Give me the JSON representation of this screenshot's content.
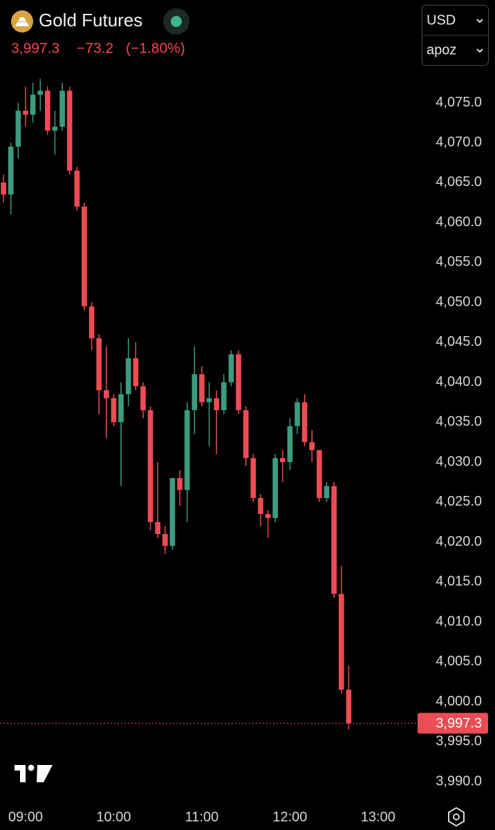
{
  "header": {
    "currency": "USD",
    "unit": "apoz"
  },
  "chart_data": {
    "type": "candlestick",
    "title": "Gold Futures",
    "price": {
      "value": 3997.3,
      "label": "3,997.3"
    },
    "change": {
      "value": -73.2,
      "label": "−73.2"
    },
    "change_percent": {
      "value": -1.8,
      "label": "(−1.80%)"
    },
    "up_color": "#3d9b80",
    "down_color": "#ec4c55",
    "x": [
      525,
      530,
      535,
      540,
      545,
      550,
      555,
      560,
      565,
      570,
      575,
      580,
      585,
      590,
      595,
      600,
      605,
      610,
      615,
      620,
      625,
      630,
      635,
      640,
      645,
      650,
      655,
      660,
      665,
      670,
      675,
      680,
      685,
      690,
      695,
      700,
      705,
      710,
      715,
      720,
      725,
      730,
      735,
      740,
      745,
      750,
      755,
      760
    ],
    "open": [
      4065.0,
      4063.5,
      4069.5,
      4074.0,
      4073.5,
      4076.0,
      4076.5,
      4071.5,
      4072.0,
      4076.5,
      4066.5,
      4062.0,
      4049.5,
      4045.5,
      4039.0,
      4038.0,
      4035.0,
      4038.5,
      4043.0,
      4039.5,
      4036.5,
      4022.5,
      4021.0,
      4019.5,
      4028.0,
      4026.5,
      4036.5,
      4041.0,
      4037.5,
      4038.0,
      4036.5,
      4040.0,
      4043.5,
      4036.5,
      4030.5,
      4025.5,
      4023.5,
      4023.0,
      4030.5,
      4030.0,
      4034.5,
      4037.5,
      4032.5,
      4031.5,
      4025.5,
      4027.0,
      4013.5,
      4001.5
    ],
    "high": [
      4066.0,
      4070.0,
      4075.0,
      4077.0,
      4077.5,
      4078.0,
      4077.0,
      4074.0,
      4077.5,
      4077.0,
      4067.0,
      4062.5,
      4050.0,
      4046.0,
      4044.5,
      4038.5,
      4040.0,
      4045.5,
      4045.0,
      4040.0,
      4037.0,
      4030.0,
      4022.0,
      4028.0,
      4029.0,
      4037.5,
      4044.5,
      4042.0,
      4040.0,
      4039.0,
      4041.0,
      4044.0,
      4044.0,
      4037.0,
      4031.0,
      4026.0,
      4024.0,
      4031.0,
      4031.5,
      4035.5,
      4038.0,
      4038.5,
      4034.0,
      4031.5,
      4027.5,
      4027.5,
      4017.0,
      4004.5
    ],
    "low": [
      4062.5,
      4061.0,
      4068.0,
      4072.0,
      4072.5,
      4074.0,
      4071.0,
      4068.5,
      4071.5,
      4066.0,
      4061.5,
      4049.0,
      4044.0,
      4036.0,
      4033.0,
      4034.5,
      4027.0,
      4037.0,
      4039.0,
      4035.5,
      4021.5,
      4020.5,
      4018.5,
      4019.0,
      4024.5,
      4022.5,
      4033.5,
      4037.0,
      4032.0,
      4031.0,
      4036.0,
      4039.5,
      4036.0,
      4029.5,
      4025.0,
      4022.0,
      4020.5,
      4022.5,
      4027.5,
      4029.0,
      4033.5,
      4032.0,
      4030.0,
      4025.0,
      4025.0,
      4013.0,
      4001.0,
      3996.5
    ],
    "close": [
      4063.5,
      4069.5,
      4074.0,
      4073.5,
      4076.0,
      4076.5,
      4071.5,
      4072.0,
      4076.5,
      4066.5,
      4062.0,
      4049.5,
      4045.5,
      4039.0,
      4038.0,
      4035.0,
      4038.5,
      4043.0,
      4039.5,
      4036.5,
      4022.5,
      4021.0,
      4019.5,
      4028.0,
      4026.5,
      4036.5,
      4041.0,
      4037.5,
      4038.0,
      4036.5,
      4040.0,
      4043.5,
      4036.5,
      4030.5,
      4025.5,
      4023.5,
      4023.0,
      4030.5,
      4030.0,
      4034.5,
      4037.5,
      4032.5,
      4031.5,
      4025.5,
      4027.0,
      4013.5,
      4001.5,
      3997.3
    ],
    "xlim": [
      522.6,
      805
    ],
    "xticks": [
      {
        "value": 540,
        "label": "09:00"
      },
      {
        "value": 600,
        "label": "10:00"
      },
      {
        "value": 660,
        "label": "11:00"
      },
      {
        "value": 720,
        "label": "12:00"
      },
      {
        "value": 780,
        "label": "13:00"
      }
    ],
    "ylim": [
      3987.4,
      4079.2
    ],
    "yticks": [
      {
        "value": 3990,
        "label": "3,990.0"
      },
      {
        "value": 3995,
        "label": "3,995.0"
      },
      {
        "value": 4000,
        "label": "4,000.0"
      },
      {
        "value": 4005,
        "label": "4,005.0"
      },
      {
        "value": 4010,
        "label": "4,010.0"
      },
      {
        "value": 4015,
        "label": "4,015.0"
      },
      {
        "value": 4020,
        "label": "4,020.0"
      },
      {
        "value": 4025,
        "label": "4,025.0"
      },
      {
        "value": 4030,
        "label": "4,030.0"
      },
      {
        "value": 4035,
        "label": "4,035.0"
      },
      {
        "value": 4040,
        "label": "4,040.0"
      },
      {
        "value": 4045,
        "label": "4,045.0"
      },
      {
        "value": 4050,
        "label": "4,050.0"
      },
      {
        "value": 4055,
        "label": "4,055.0"
      },
      {
        "value": 4060,
        "label": "4,060.0"
      },
      {
        "value": 4065,
        "label": "4,065.0"
      },
      {
        "value": 4070,
        "label": "4,070.0"
      },
      {
        "value": 4075,
        "label": "4,075.0"
      }
    ],
    "grid": false
  }
}
